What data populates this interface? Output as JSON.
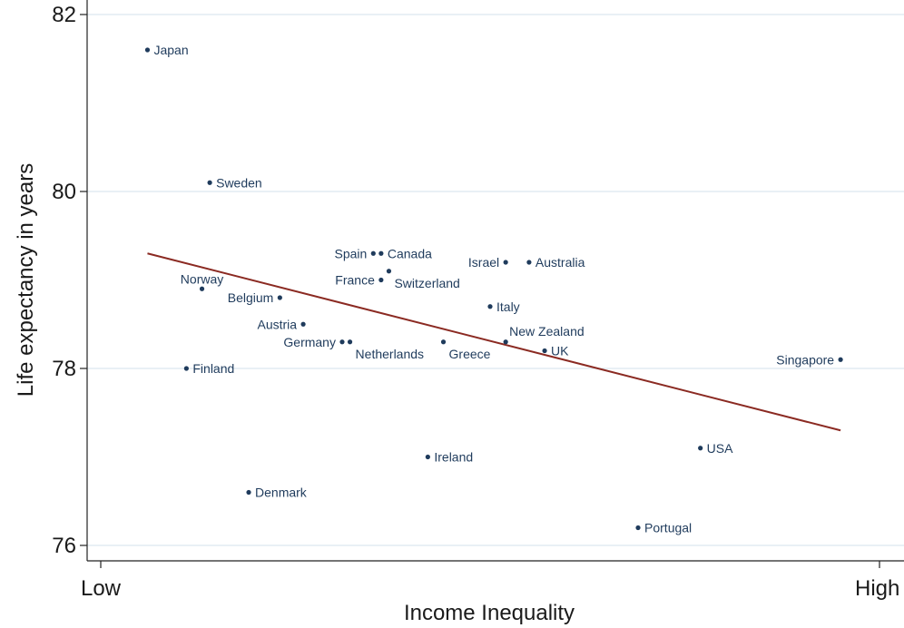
{
  "chart_data": {
    "type": "scatter",
    "title": "",
    "xlabel": "Income Inequality",
    "ylabel": "Life expectancy in years",
    "xlim": [
      0,
      1
    ],
    "ylim": [
      76,
      82
    ],
    "x_tick_labels": [
      {
        "value": 0,
        "label": "Low"
      },
      {
        "value": 1,
        "label": "High"
      }
    ],
    "y_ticks": [
      76,
      78,
      80,
      82
    ],
    "grid": "horizontal",
    "legend": "none",
    "colors": {
      "points": "#1f3b5c",
      "fit_line": "#8b2a22",
      "grid": "#dce7ef",
      "axis": "#222222"
    },
    "fit_line": {
      "x": [
        0.06,
        0.95
      ],
      "y": [
        79.3,
        77.3
      ]
    },
    "points": [
      {
        "label": "Japan",
        "x": 0.06,
        "y": 81.6,
        "label_pos": "right"
      },
      {
        "label": "Sweden",
        "x": 0.14,
        "y": 80.1,
        "label_pos": "right"
      },
      {
        "label": "Norway",
        "x": 0.13,
        "y": 78.9,
        "label_pos": "above"
      },
      {
        "label": "Finland",
        "x": 0.11,
        "y": 78.0,
        "label_pos": "right"
      },
      {
        "label": "Denmark",
        "x": 0.19,
        "y": 76.6,
        "label_pos": "right"
      },
      {
        "label": "Belgium",
        "x": 0.23,
        "y": 78.8,
        "label_pos": "left"
      },
      {
        "label": "Austria",
        "x": 0.26,
        "y": 78.5,
        "label_pos": "left"
      },
      {
        "label": "Germany",
        "x": 0.31,
        "y": 78.3,
        "label_pos": "left"
      },
      {
        "label": "Netherlands",
        "x": 0.32,
        "y": 78.3,
        "label_pos": "below-right"
      },
      {
        "label": "Spain",
        "x": 0.35,
        "y": 79.3,
        "label_pos": "left"
      },
      {
        "label": "Canada",
        "x": 0.36,
        "y": 79.3,
        "label_pos": "right"
      },
      {
        "label": "France",
        "x": 0.36,
        "y": 79.0,
        "label_pos": "left"
      },
      {
        "label": "Switzerland",
        "x": 0.37,
        "y": 79.1,
        "label_pos": "below-right"
      },
      {
        "label": "Ireland",
        "x": 0.42,
        "y": 77.0,
        "label_pos": "right"
      },
      {
        "label": "Greece",
        "x": 0.44,
        "y": 78.3,
        "label_pos": "below-right"
      },
      {
        "label": "Italy",
        "x": 0.5,
        "y": 78.7,
        "label_pos": "right"
      },
      {
        "label": "Israel",
        "x": 0.52,
        "y": 79.2,
        "label_pos": "left"
      },
      {
        "label": "New Zealand",
        "x": 0.52,
        "y": 78.3,
        "label_pos": "above-right"
      },
      {
        "label": "Australia",
        "x": 0.55,
        "y": 79.2,
        "label_pos": "right"
      },
      {
        "label": "UK",
        "x": 0.57,
        "y": 78.2,
        "label_pos": "right"
      },
      {
        "label": "Portugal",
        "x": 0.69,
        "y": 76.2,
        "label_pos": "right"
      },
      {
        "label": "USA",
        "x": 0.77,
        "y": 77.1,
        "label_pos": "right"
      },
      {
        "label": "Singapore",
        "x": 0.95,
        "y": 78.1,
        "label_pos": "left"
      }
    ]
  }
}
